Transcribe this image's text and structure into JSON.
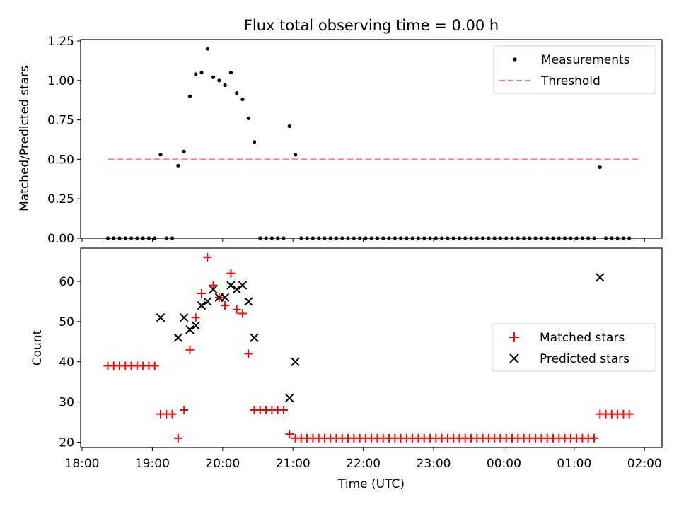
{
  "chart_data": [
    {
      "type": "scatter",
      "title": "Flux total observing time = 0.00 h",
      "xlabel": "",
      "ylabel": "Matched/Predicted stars",
      "ylim": [
        0,
        1.25
      ],
      "yticks": [
        "0.00",
        "0.25",
        "0.50",
        "0.75",
        "1.00",
        "1.25"
      ],
      "grid": false,
      "legend": {
        "position": "upper right",
        "entries": [
          "Measurements",
          "Threshold"
        ]
      },
      "series": [
        {
          "name": "Measurements",
          "marker": "dot",
          "color": "#000000",
          "points": [
            {
              "x": "18:22",
              "y": 0
            },
            {
              "x": "18:27",
              "y": 0
            },
            {
              "x": "18:32",
              "y": 0
            },
            {
              "x": "18:37",
              "y": 0
            },
            {
              "x": "18:42",
              "y": 0
            },
            {
              "x": "18:47",
              "y": 0
            },
            {
              "x": "18:52",
              "y": 0
            },
            {
              "x": "18:57",
              "y": 0
            },
            {
              "x": "19:02",
              "y": 0
            },
            {
              "x": "19:07",
              "y": 0.53
            },
            {
              "x": "19:12",
              "y": 0
            },
            {
              "x": "19:17",
              "y": 0
            },
            {
              "x": "19:22",
              "y": 0.46
            },
            {
              "x": "19:27",
              "y": 0.55
            },
            {
              "x": "19:32",
              "y": 0.9
            },
            {
              "x": "19:37",
              "y": 1.04
            },
            {
              "x": "19:42",
              "y": 1.05
            },
            {
              "x": "19:47",
              "y": 1.2
            },
            {
              "x": "19:52",
              "y": 1.02
            },
            {
              "x": "19:57",
              "y": 1.0
            },
            {
              "x": "20:02",
              "y": 0.97
            },
            {
              "x": "20:07",
              "y": 1.05
            },
            {
              "x": "20:12",
              "y": 0.92
            },
            {
              "x": "20:17",
              "y": 0.88
            },
            {
              "x": "20:22",
              "y": 0.76
            },
            {
              "x": "20:27",
              "y": 0.61
            },
            {
              "x": "20:32",
              "y": 0
            },
            {
              "x": "20:37",
              "y": 0
            },
            {
              "x": "20:42",
              "y": 0
            },
            {
              "x": "20:47",
              "y": 0
            },
            {
              "x": "20:52",
              "y": 0
            },
            {
              "x": "20:57",
              "y": 0.71
            },
            {
              "x": "21:02",
              "y": 0.53
            },
            {
              "x": "21:07",
              "y": 0
            },
            {
              "x": "21:12",
              "y": 0
            },
            {
              "x": "21:17",
              "y": 0
            },
            {
              "x": "21:22",
              "y": 0
            },
            {
              "x": "21:27",
              "y": 0
            },
            {
              "x": "21:32",
              "y": 0
            },
            {
              "x": "21:37",
              "y": 0
            },
            {
              "x": "21:42",
              "y": 0
            },
            {
              "x": "21:47",
              "y": 0
            },
            {
              "x": "21:52",
              "y": 0
            },
            {
              "x": "21:57",
              "y": 0
            },
            {
              "x": "22:02",
              "y": 0
            },
            {
              "x": "22:07",
              "y": 0
            },
            {
              "x": "22:12",
              "y": 0
            },
            {
              "x": "22:17",
              "y": 0
            },
            {
              "x": "22:22",
              "y": 0
            },
            {
              "x": "22:27",
              "y": 0
            },
            {
              "x": "22:32",
              "y": 0
            },
            {
              "x": "22:37",
              "y": 0
            },
            {
              "x": "22:42",
              "y": 0
            },
            {
              "x": "22:47",
              "y": 0
            },
            {
              "x": "22:52",
              "y": 0
            },
            {
              "x": "22:57",
              "y": 0
            },
            {
              "x": "23:02",
              "y": 0
            },
            {
              "x": "23:07",
              "y": 0
            },
            {
              "x": "23:12",
              "y": 0
            },
            {
              "x": "23:17",
              "y": 0
            },
            {
              "x": "23:22",
              "y": 0
            },
            {
              "x": "23:27",
              "y": 0
            },
            {
              "x": "23:32",
              "y": 0
            },
            {
              "x": "23:37",
              "y": 0
            },
            {
              "x": "23:42",
              "y": 0
            },
            {
              "x": "23:47",
              "y": 0
            },
            {
              "x": "23:52",
              "y": 0
            },
            {
              "x": "23:57",
              "y": 0
            },
            {
              "x": "00:02",
              "y": 0
            },
            {
              "x": "00:07",
              "y": 0
            },
            {
              "x": "00:12",
              "y": 0
            },
            {
              "x": "00:17",
              "y": 0
            },
            {
              "x": "00:22",
              "y": 0
            },
            {
              "x": "00:27",
              "y": 0
            },
            {
              "x": "00:32",
              "y": 0
            },
            {
              "x": "00:37",
              "y": 0
            },
            {
              "x": "00:42",
              "y": 0
            },
            {
              "x": "00:47",
              "y": 0
            },
            {
              "x": "00:52",
              "y": 0
            },
            {
              "x": "00:57",
              "y": 0
            },
            {
              "x": "01:02",
              "y": 0
            },
            {
              "x": "01:07",
              "y": 0
            },
            {
              "x": "01:12",
              "y": 0
            },
            {
              "x": "01:17",
              "y": 0
            },
            {
              "x": "01:22",
              "y": 0.45
            },
            {
              "x": "01:27",
              "y": 0
            },
            {
              "x": "01:32",
              "y": 0
            },
            {
              "x": "01:37",
              "y": 0
            },
            {
              "x": "01:42",
              "y": 0
            },
            {
              "x": "01:47",
              "y": 0
            }
          ]
        },
        {
          "name": "Threshold",
          "style": "dashed",
          "color": "#ff8080",
          "x": [
            "18:22",
            "01:57"
          ],
          "y": [
            0.5,
            0.5
          ]
        }
      ]
    },
    {
      "type": "scatter",
      "title": "",
      "xlabel": "Time (UTC)",
      "ylabel": "Count",
      "ylim": [
        19.2,
        68.5
      ],
      "yticks": [
        "20",
        "30",
        "40",
        "50",
        "60"
      ],
      "xticks": [
        "18:00",
        "19:00",
        "20:00",
        "21:00",
        "22:00",
        "23:00",
        "00:00",
        "01:00",
        "02:00"
      ],
      "grid": false,
      "legend": {
        "position": "center right",
        "entries": [
          "Matched stars",
          "Predicted stars"
        ]
      },
      "series": [
        {
          "name": "Matched stars",
          "marker": "plus",
          "color": "#ff0000",
          "points": [
            {
              "x": "18:22",
              "y": 39
            },
            {
              "x": "18:27",
              "y": 39
            },
            {
              "x": "18:32",
              "y": 39
            },
            {
              "x": "18:37",
              "y": 39
            },
            {
              "x": "18:42",
              "y": 39
            },
            {
              "x": "18:47",
              "y": 39
            },
            {
              "x": "18:52",
              "y": 39
            },
            {
              "x": "18:57",
              "y": 39
            },
            {
              "x": "19:02",
              "y": 39
            },
            {
              "x": "19:07",
              "y": 27
            },
            {
              "x": "19:12",
              "y": 27
            },
            {
              "x": "19:17",
              "y": 27
            },
            {
              "x": "19:22",
              "y": 21
            },
            {
              "x": "19:27",
              "y": 28
            },
            {
              "x": "19:32",
              "y": 43
            },
            {
              "x": "19:37",
              "y": 51
            },
            {
              "x": "19:42",
              "y": 57
            },
            {
              "x": "19:47",
              "y": 66
            },
            {
              "x": "19:52",
              "y": 59
            },
            {
              "x": "19:57",
              "y": 56
            },
            {
              "x": "20:02",
              "y": 54
            },
            {
              "x": "20:07",
              "y": 62
            },
            {
              "x": "20:12",
              "y": 53
            },
            {
              "x": "20:17",
              "y": 52
            },
            {
              "x": "20:22",
              "y": 42
            },
            {
              "x": "20:27",
              "y": 28
            },
            {
              "x": "20:32",
              "y": 28
            },
            {
              "x": "20:37",
              "y": 28
            },
            {
              "x": "20:42",
              "y": 28
            },
            {
              "x": "20:47",
              "y": 28
            },
            {
              "x": "20:52",
              "y": 28
            },
            {
              "x": "20:57",
              "y": 22
            },
            {
              "x": "21:02",
              "y": 21
            },
            {
              "x": "21:07",
              "y": 21
            },
            {
              "x": "21:12",
              "y": 21
            },
            {
              "x": "21:17",
              "y": 21
            },
            {
              "x": "21:22",
              "y": 21
            },
            {
              "x": "21:27",
              "y": 21
            },
            {
              "x": "21:32",
              "y": 21
            },
            {
              "x": "21:37",
              "y": 21
            },
            {
              "x": "21:42",
              "y": 21
            },
            {
              "x": "21:47",
              "y": 21
            },
            {
              "x": "21:52",
              "y": 21
            },
            {
              "x": "21:57",
              "y": 21
            },
            {
              "x": "22:02",
              "y": 21
            },
            {
              "x": "22:07",
              "y": 21
            },
            {
              "x": "22:12",
              "y": 21
            },
            {
              "x": "22:17",
              "y": 21
            },
            {
              "x": "22:22",
              "y": 21
            },
            {
              "x": "22:27",
              "y": 21
            },
            {
              "x": "22:32",
              "y": 21
            },
            {
              "x": "22:37",
              "y": 21
            },
            {
              "x": "22:42",
              "y": 21
            },
            {
              "x": "22:47",
              "y": 21
            },
            {
              "x": "22:52",
              "y": 21
            },
            {
              "x": "22:57",
              "y": 21
            },
            {
              "x": "23:02",
              "y": 21
            },
            {
              "x": "23:07",
              "y": 21
            },
            {
              "x": "23:12",
              "y": 21
            },
            {
              "x": "23:17",
              "y": 21
            },
            {
              "x": "23:22",
              "y": 21
            },
            {
              "x": "23:27",
              "y": 21
            },
            {
              "x": "23:32",
              "y": 21
            },
            {
              "x": "23:37",
              "y": 21
            },
            {
              "x": "23:42",
              "y": 21
            },
            {
              "x": "23:47",
              "y": 21
            },
            {
              "x": "23:52",
              "y": 21
            },
            {
              "x": "23:57",
              "y": 21
            },
            {
              "x": "00:02",
              "y": 21
            },
            {
              "x": "00:07",
              "y": 21
            },
            {
              "x": "00:12",
              "y": 21
            },
            {
              "x": "00:17",
              "y": 21
            },
            {
              "x": "00:22",
              "y": 21
            },
            {
              "x": "00:27",
              "y": 21
            },
            {
              "x": "00:32",
              "y": 21
            },
            {
              "x": "00:37",
              "y": 21
            },
            {
              "x": "00:42",
              "y": 21
            },
            {
              "x": "00:47",
              "y": 21
            },
            {
              "x": "00:52",
              "y": 21
            },
            {
              "x": "00:57",
              "y": 21
            },
            {
              "x": "01:02",
              "y": 21
            },
            {
              "x": "01:07",
              "y": 21
            },
            {
              "x": "01:12",
              "y": 21
            },
            {
              "x": "01:17",
              "y": 21
            },
            {
              "x": "01:22",
              "y": 27
            },
            {
              "x": "01:27",
              "y": 27
            },
            {
              "x": "01:32",
              "y": 27
            },
            {
              "x": "01:37",
              "y": 27
            },
            {
              "x": "01:42",
              "y": 27
            },
            {
              "x": "01:47",
              "y": 27
            }
          ]
        },
        {
          "name": "Predicted stars",
          "marker": "x",
          "color": "#000000",
          "points": [
            {
              "x": "19:07",
              "y": 51
            },
            {
              "x": "19:22",
              "y": 46
            },
            {
              "x": "19:27",
              "y": 51
            },
            {
              "x": "19:32",
              "y": 48
            },
            {
              "x": "19:37",
              "y": 49
            },
            {
              "x": "19:42",
              "y": 54
            },
            {
              "x": "19:47",
              "y": 55
            },
            {
              "x": "19:52",
              "y": 58
            },
            {
              "x": "19:57",
              "y": 56
            },
            {
              "x": "20:02",
              "y": 56
            },
            {
              "x": "20:07",
              "y": 59
            },
            {
              "x": "20:12",
              "y": 58
            },
            {
              "x": "20:17",
              "y": 59
            },
            {
              "x": "20:22",
              "y": 55
            },
            {
              "x": "20:27",
              "y": 46
            },
            {
              "x": "20:57",
              "y": 31
            },
            {
              "x": "21:02",
              "y": 40
            },
            {
              "x": "01:22",
              "y": 61
            }
          ]
        }
      ]
    }
  ]
}
